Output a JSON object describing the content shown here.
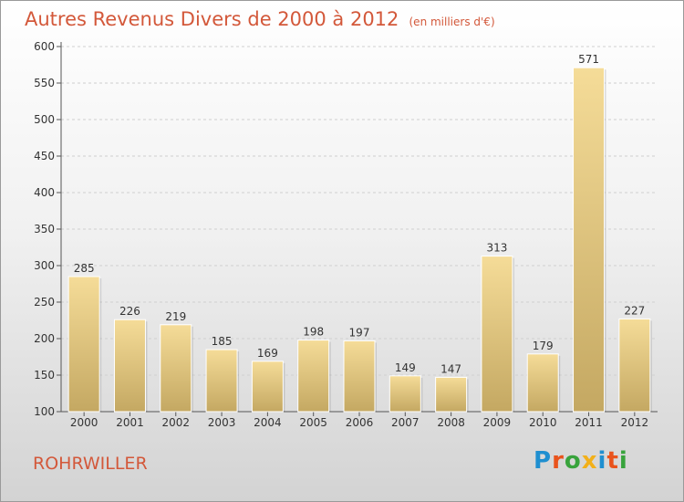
{
  "title": "Autres Revenus Divers de 2000 à 2012",
  "subtitle": "(en milliers d'€)",
  "commune": "ROHRWILLER",
  "logo": {
    "text": "Proxiti",
    "colors": [
      "#1f8fd0",
      "#e9531c",
      "#38a33c",
      "#f2b01a",
      "#1f8fd0",
      "#e9531c",
      "#38a33c"
    ]
  },
  "chart_data": {
    "type": "bar",
    "categories": [
      "2000",
      "2001",
      "2002",
      "2003",
      "2004",
      "2005",
      "2006",
      "2007",
      "2008",
      "2009",
      "2010",
      "2011",
      "2012"
    ],
    "values": [
      285,
      226,
      219,
      185,
      169,
      198,
      197,
      149,
      147,
      313,
      179,
      571,
      227
    ],
    "ylim": [
      100,
      600
    ],
    "yticks": [
      100,
      150,
      200,
      250,
      300,
      350,
      400,
      450,
      500,
      550,
      600
    ],
    "grid": true,
    "bar_color_top": "#f5dc98",
    "bar_color_bottom": "#c4a862"
  }
}
